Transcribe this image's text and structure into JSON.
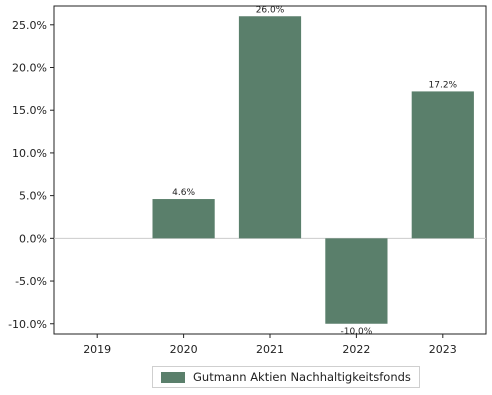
{
  "colors": {
    "bar": "#5a7f6b",
    "axis": "#222222",
    "zero_line": "#cccccc"
  },
  "chart_data": {
    "type": "bar",
    "categories": [
      "2019",
      "2020",
      "2021",
      "2022",
      "2023"
    ],
    "series": [
      {
        "name": "Gutmann Aktien Nachhaltigkeitsfonds",
        "values": [
          null,
          4.6,
          26.0,
          -10.0,
          17.2
        ],
        "data_labels": [
          "",
          "4.6%",
          "26.0%",
          "-10.0%",
          "17.2%"
        ]
      }
    ],
    "yticks": [
      -10,
      -5,
      0,
      5,
      10,
      15,
      20,
      25
    ],
    "ytick_labels": [
      "-10.0%",
      "-5.0%",
      "0.0%",
      "5.0%",
      "10.0%",
      "15.0%",
      "20.0%",
      "25.0%"
    ],
    "ylim": [
      -11.2,
      27.2
    ],
    "title": "",
    "xlabel": "",
    "ylabel": "",
    "grid": false,
    "legend_position": "bottom-center"
  }
}
